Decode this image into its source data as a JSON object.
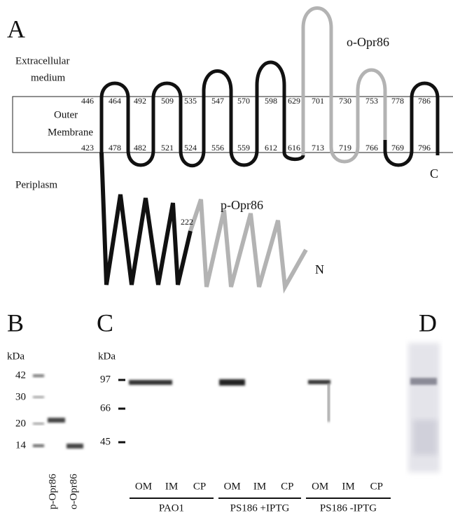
{
  "panel_a": {
    "label": "A",
    "extracellular": [
      "Extracellular",
      "medium"
    ],
    "membrane": [
      "Outer",
      "Membrane"
    ],
    "periplasm": "Periplasm",
    "o_label": "o-Opr86",
    "p_label": "p-Opr86",
    "n_terminus": "N",
    "c_terminus": "C",
    "residue_222": 222,
    "top_residues": [
      446,
      464,
      492,
      509,
      535,
      547,
      570,
      598,
      629,
      701,
      730,
      753,
      778,
      786
    ],
    "bottom_residues": [
      423,
      478,
      482,
      521,
      524,
      556,
      559,
      612,
      616,
      713,
      719,
      766,
      769,
      796
    ]
  },
  "panel_b": {
    "label": "B",
    "unit": "kDa",
    "markers": [
      42,
      30,
      20,
      14
    ],
    "lanes": [
      "p-Opr86",
      "o-Opr86"
    ]
  },
  "panel_c": {
    "label": "C",
    "unit": "kDa",
    "markers": [
      97,
      66,
      45
    ],
    "groups": [
      {
        "name": "PAO1",
        "lanes": [
          "OM",
          "IM",
          "CP"
        ]
      },
      {
        "name": "PS186 +IPTG",
        "lanes": [
          "OM",
          "IM",
          "CP"
        ]
      },
      {
        "name": "PS186 -IPTG",
        "lanes": [
          "OM",
          "IM",
          "CP"
        ]
      }
    ]
  },
  "panel_d": {
    "label": "D"
  }
}
